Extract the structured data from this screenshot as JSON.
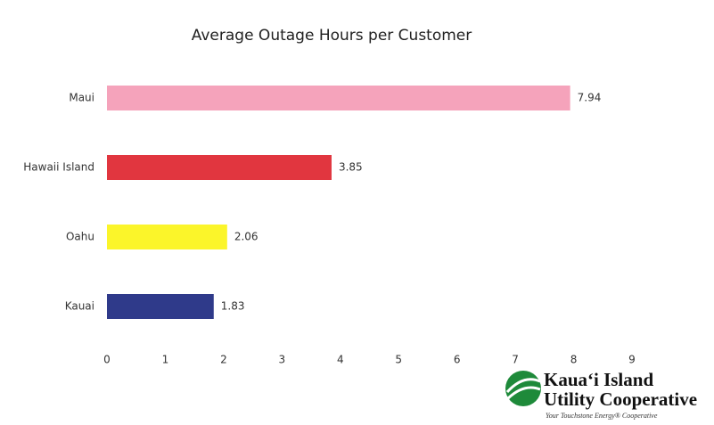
{
  "chart_data": {
    "type": "hbar",
    "title": "Average Outage Hours per Customer",
    "categories": [
      "Maui",
      "Hawaii Island",
      "Oahu",
      "Kauai"
    ],
    "values": [
      7.94,
      3.85,
      2.06,
      1.83
    ],
    "colors": [
      "#f5a3bb",
      "#e1363f",
      "#fbf52a",
      "#2f3a8a"
    ],
    "xlim": [
      0,
      9
    ],
    "xticks": [
      0,
      1,
      2,
      3,
      4,
      5,
      6,
      7,
      8,
      9
    ],
    "grid": false
  },
  "logo": {
    "lines": [
      "Kaua‘i Island",
      "Utility Cooperative"
    ],
    "tagline": "Your Touchstone Energy® Cooperative"
  }
}
